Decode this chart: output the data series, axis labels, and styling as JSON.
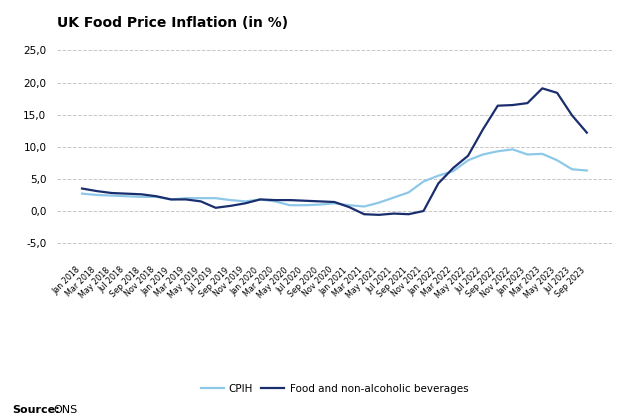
{
  "title": "UK Food Price Inflation (in %)",
  "source_label": "Source:",
  "source_value": "ONS",
  "legend_cpih": "CPIH",
  "legend_food": "Food and non-alcoholic beverages",
  "ylim": [
    -7.5,
    27
  ],
  "yticks": [
    -5.0,
    0.0,
    5.0,
    10.0,
    15.0,
    20.0,
    25.0
  ],
  "background_color": "#ffffff",
  "cpih_color": "#8ec8e8",
  "food_color": "#1a2e6e",
  "grid_color": "#c8c8c8",
  "labels": [
    "Jan 2018",
    "Mar 2018",
    "May 2018",
    "Jul 2018",
    "Sep 2018",
    "Nov 2018",
    "Jan 2019",
    "Mar 2019",
    "May 2019",
    "Jul 2019",
    "Sep 2019",
    "Nov 2019",
    "Jan 2020",
    "Mar 2020",
    "May 2020",
    "Jul 2020",
    "Sep 2020",
    "Nov 2020",
    "Jan 2021",
    "Mar 2021",
    "May 2021",
    "Jul 2021",
    "Sep 2021",
    "Nov 2021",
    "Jan 2022",
    "Mar 2022",
    "May 2022",
    "Jul 2022",
    "Sep 2022",
    "Nov 2022",
    "Jan 2023",
    "Mar 2023",
    "May 2023",
    "Jul 2023",
    "Sep 2023"
  ],
  "cpih": [
    2.7,
    2.5,
    2.4,
    2.3,
    2.2,
    2.2,
    1.8,
    2.0,
    2.0,
    2.0,
    1.7,
    1.5,
    1.8,
    1.5,
    0.9,
    0.9,
    1.0,
    1.2,
    0.9,
    0.7,
    1.3,
    2.1,
    2.9,
    4.6,
    5.5,
    6.2,
    7.9,
    8.8,
    9.3,
    9.6,
    8.8,
    8.9,
    7.9,
    6.5,
    6.3
  ],
  "food": [
    3.5,
    3.1,
    2.8,
    2.7,
    2.6,
    2.3,
    1.8,
    1.8,
    1.5,
    0.5,
    0.8,
    1.2,
    1.8,
    1.7,
    1.7,
    1.6,
    1.5,
    1.4,
    0.6,
    -0.5,
    -0.6,
    -0.4,
    -0.5,
    0.0,
    4.3,
    6.7,
    8.6,
    12.7,
    16.4,
    16.5,
    16.8,
    19.1,
    18.4,
    14.9,
    12.2
  ]
}
